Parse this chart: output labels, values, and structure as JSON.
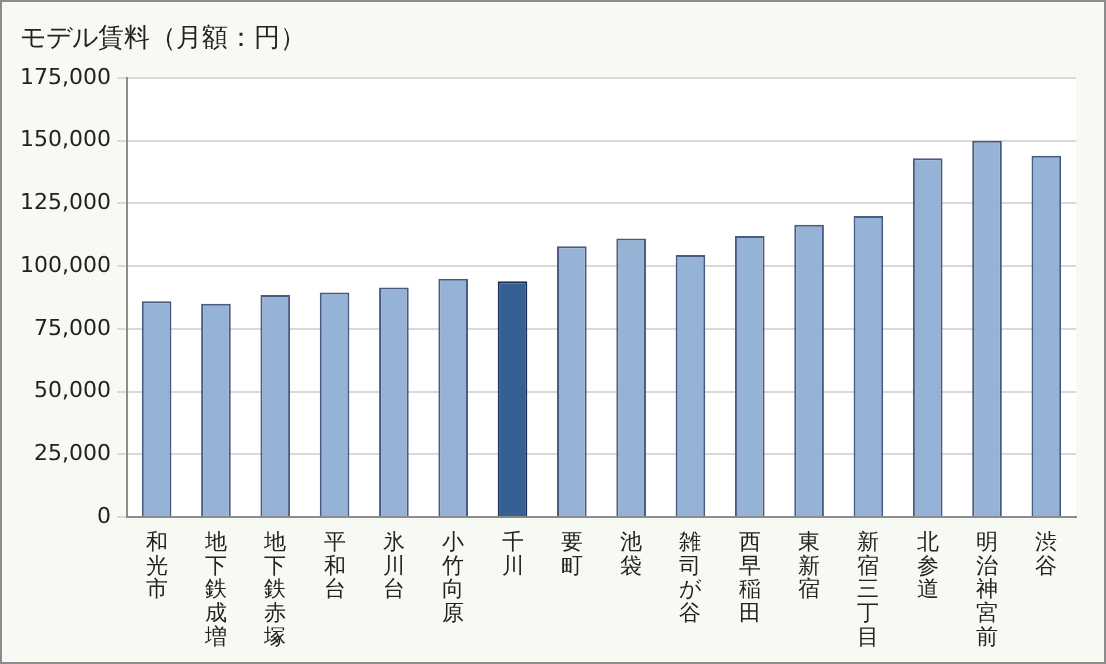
{
  "chart_data": {
    "type": "bar",
    "title": "モデル賃料（月額：円）",
    "categories": [
      "和光市",
      "地下鉄成増",
      "地下鉄赤塚",
      "平和台",
      "氷川台",
      "小竹向原",
      "千川",
      "要町",
      "池袋",
      "雑司が谷",
      "西早稲田",
      "東新宿",
      "新宿三丁目",
      "北参道",
      "明治神宮前",
      "渋谷"
    ],
    "values": [
      86000,
      85000,
      88500,
      89500,
      91500,
      95000,
      94000,
      108000,
      111000,
      104500,
      112000,
      116500,
      120000,
      143000,
      150000,
      144000
    ],
    "colors": [
      "#95b3d7",
      "#95b3d7",
      "#95b3d7",
      "#95b3d7",
      "#95b3d7",
      "#95b3d7",
      "#366092",
      "#95b3d7",
      "#95b3d7",
      "#95b3d7",
      "#95b3d7",
      "#95b3d7",
      "#95b3d7",
      "#95b3d7",
      "#95b3d7",
      "#95b3d7"
    ],
    "ylim": [
      0,
      175000
    ],
    "yticks": [
      0,
      {
        "value": 25000,
        "label": "25,000"
      },
      {
        "value": 50000,
        "label": "50,000"
      },
      {
        "value": 75000,
        "label": "75,000"
      },
      {
        "value": 100000,
        "label": "100,000"
      },
      {
        "value": 125000,
        "label": "125,000"
      },
      {
        "value": 150000,
        "label": "150,000"
      },
      {
        "value": 175000,
        "label": "175,000"
      }
    ],
    "grid": "y",
    "legend": false
  }
}
